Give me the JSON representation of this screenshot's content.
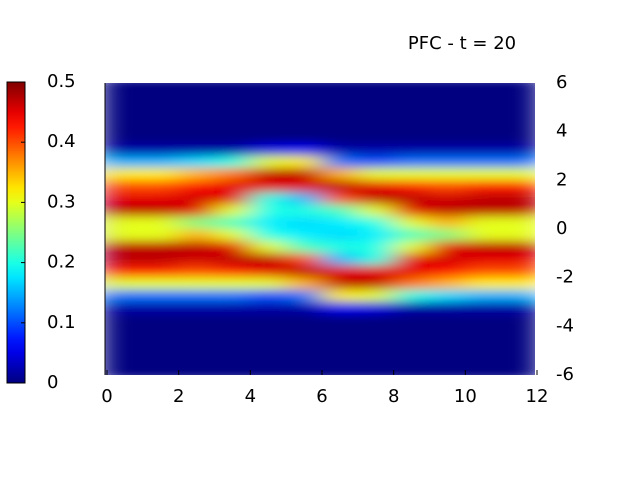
{
  "chart_data": {
    "type": "heatmap",
    "title": "PFC - t = 20",
    "colormap": "jet",
    "x": [
      0.5,
      1.5,
      2.5,
      3.5,
      4.5,
      5.5,
      6.5,
      7.5,
      8.5,
      9.5,
      10.5,
      11.5
    ],
    "y": [
      5.75,
      5.25,
      4.75,
      4.25,
      3.75,
      3.25,
      2.75,
      2.25,
      1.75,
      1.25,
      0.75,
      0.25,
      -0.25,
      -0.75,
      -1.25,
      -1.75,
      -2.25,
      -2.75,
      -3.25,
      -3.75,
      -4.25,
      -4.75,
      -5.25,
      -5.75
    ],
    "z": [
      [
        0,
        0,
        0,
        0,
        0,
        0.02,
        0.15,
        0.32,
        0.4,
        0.45,
        0.47,
        0.3,
        0.3,
        0.47,
        0.47,
        0.42,
        0.3,
        0.12,
        0.02,
        0,
        0,
        0,
        0,
        0
      ],
      [
        0,
        0,
        0,
        0,
        0,
        0.02,
        0.15,
        0.32,
        0.4,
        0.45,
        0.47,
        0.3,
        0.3,
        0.47,
        0.47,
        0.42,
        0.3,
        0.12,
        0.02,
        0,
        0,
        0,
        0,
        0
      ],
      [
        0,
        0,
        0,
        0,
        0,
        0.02,
        0.17,
        0.35,
        0.43,
        0.46,
        0.45,
        0.25,
        0.35,
        0.47,
        0.46,
        0.4,
        0.3,
        0.12,
        0.02,
        0,
        0,
        0,
        0,
        0
      ],
      [
        0,
        0,
        0,
        0,
        0,
        0.02,
        0.2,
        0.38,
        0.45,
        0.45,
        0.3,
        0.22,
        0.3,
        0.45,
        0.47,
        0.42,
        0.3,
        0.12,
        0.02,
        0,
        0,
        0,
        0,
        0
      ],
      [
        0,
        0,
        0,
        0,
        0,
        0.05,
        0.3,
        0.47,
        0.45,
        0.2,
        0.2,
        0.18,
        0.2,
        0.3,
        0.47,
        0.45,
        0.3,
        0.1,
        0.02,
        0,
        0,
        0,
        0,
        0
      ],
      [
        0,
        0,
        0,
        0,
        0,
        0.06,
        0.32,
        0.47,
        0.45,
        0.15,
        0.2,
        0.17,
        0.18,
        0.22,
        0.4,
        0.47,
        0.35,
        0.12,
        0.02,
        0,
        0,
        0,
        0,
        0
      ],
      [
        0,
        0,
        0,
        0,
        0,
        0.02,
        0.12,
        0.35,
        0.47,
        0.4,
        0.22,
        0.18,
        0.17,
        0.2,
        0.15,
        0.45,
        0.47,
        0.32,
        0.06,
        0,
        0,
        0,
        0,
        0
      ],
      [
        0,
        0,
        0,
        0,
        0,
        0.02,
        0.1,
        0.3,
        0.45,
        0.47,
        0.3,
        0.2,
        0.18,
        0.2,
        0.2,
        0.45,
        0.47,
        0.3,
        0.05,
        0,
        0,
        0,
        0,
        0
      ],
      [
        0,
        0,
        0,
        0,
        0,
        0.02,
        0.12,
        0.3,
        0.42,
        0.47,
        0.45,
        0.3,
        0.22,
        0.3,
        0.45,
        0.45,
        0.38,
        0.2,
        0.02,
        0,
        0,
        0,
        0,
        0
      ],
      [
        0,
        0,
        0,
        0,
        0,
        0.02,
        0.12,
        0.3,
        0.4,
        0.46,
        0.47,
        0.35,
        0.25,
        0.45,
        0.46,
        0.43,
        0.35,
        0.17,
        0.02,
        0,
        0,
        0,
        0,
        0
      ],
      [
        0,
        0,
        0,
        0,
        0,
        0.02,
        0.12,
        0.3,
        0.42,
        0.47,
        0.47,
        0.3,
        0.3,
        0.47,
        0.45,
        0.4,
        0.32,
        0.15,
        0.02,
        0,
        0,
        0,
        0,
        0
      ],
      [
        0,
        0,
        0,
        0,
        0,
        0.02,
        0.12,
        0.3,
        0.42,
        0.47,
        0.47,
        0.3,
        0.3,
        0.47,
        0.45,
        0.4,
        0.32,
        0.15,
        0.02,
        0,
        0,
        0,
        0,
        0
      ]
    ],
    "xlim": [
      0,
      12
    ],
    "xticks": [
      0,
      2,
      4,
      6,
      8,
      10,
      12
    ],
    "ylim": [
      -6,
      6
    ],
    "yticks": [
      -6,
      -4,
      -2,
      0,
      2,
      4,
      6
    ],
    "zlim": [
      0,
      0.5
    ],
    "zticks": [
      0,
      0.1,
      0.2,
      0.3,
      0.4,
      0.5
    ]
  }
}
